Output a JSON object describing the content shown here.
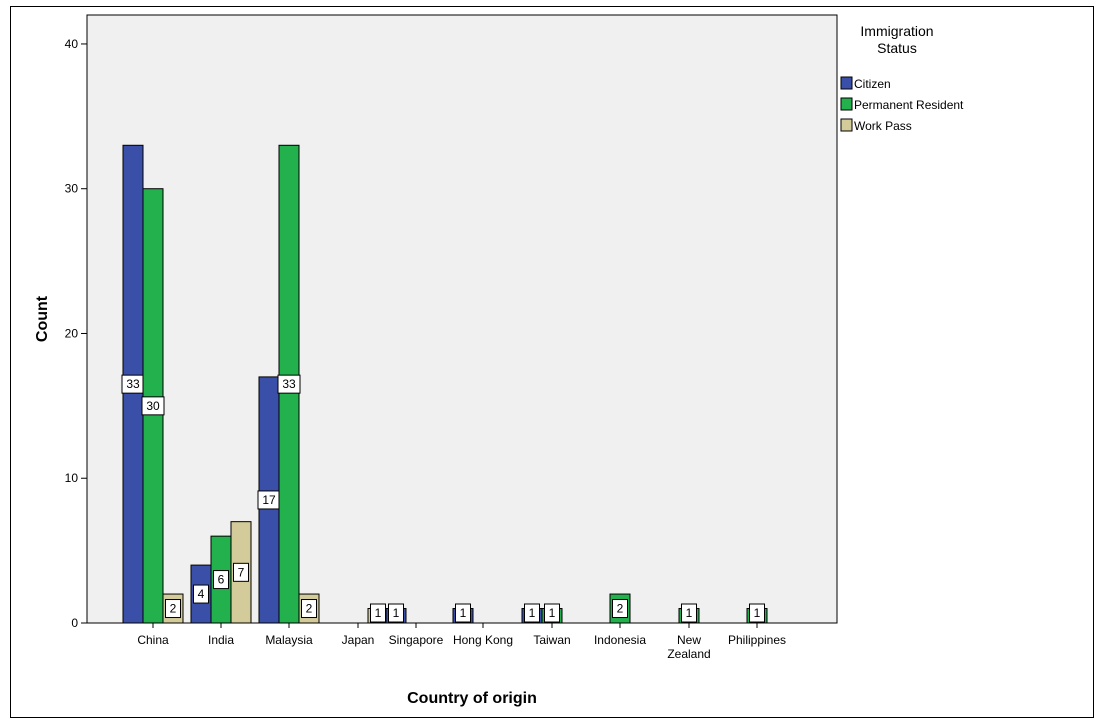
{
  "chart_data": {
    "type": "bar",
    "xlabel": "Country of origin",
    "ylabel": "Count",
    "ylim": [
      0,
      42
    ],
    "yticks": [
      0,
      10,
      20,
      30,
      40
    ],
    "grid": false,
    "legend_position": "top-right",
    "legend_title": "Immigration Status",
    "categories": [
      [
        "China"
      ],
      [
        "India"
      ],
      [
        "Malaysia"
      ],
      [
        "Japan"
      ],
      [
        "Singapore"
      ],
      [
        "Hong Kong"
      ],
      [
        "Taiwan"
      ],
      [
        "Indonesia"
      ],
      [
        "New",
        "Zealand"
      ],
      [
        "Philippines"
      ]
    ],
    "series": [
      {
        "name": "Citizen",
        "color": "#3a50a8",
        "values": [
          33,
          4,
          17,
          null,
          1,
          1,
          1,
          null,
          null,
          null
        ]
      },
      {
        "name": "Permanent Resident",
        "color": "#22b14c",
        "values": [
          30,
          6,
          33,
          null,
          null,
          null,
          1,
          2,
          1,
          1
        ]
      },
      {
        "name": "Work Pass",
        "color": "#d3cb9a",
        "values": [
          2,
          7,
          2,
          1,
          null,
          null,
          null,
          null,
          null,
          null
        ]
      }
    ]
  }
}
